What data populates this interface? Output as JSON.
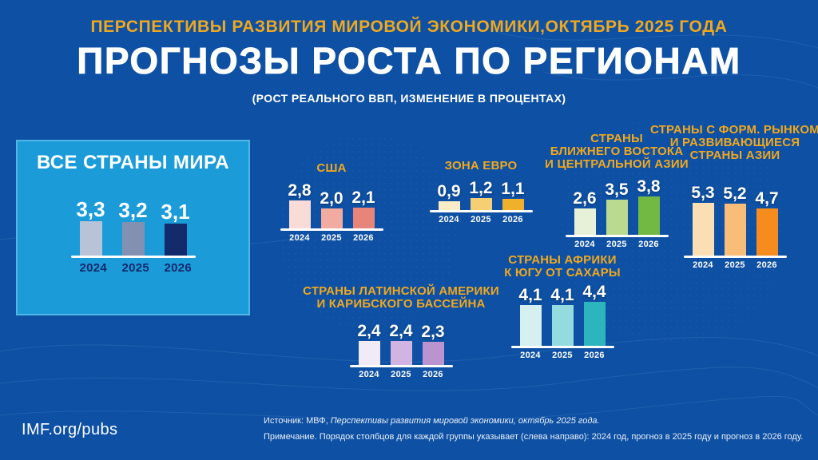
{
  "header": {
    "kicker": "ПЕРСПЕКТИВЫ РАЗВИТИЯ МИРОВОЙ ЭКОНОМИКИ,ОКТЯБРЬ 2025 ГОДА",
    "title": "ПРОГНОЗЫ РОСТА ПО РЕГИОНАМ",
    "subtitle": "(РОСТ РЕАЛЬНОГО ВВП, ИЗМЕНЕНИЕ В ПРОЦЕНТАХ)"
  },
  "footer": {
    "link": "IMF.org/pubs",
    "source_prefix": "Источник: МВФ, ",
    "source_italic": "Перспективы развития мировой экономики, октябрь 2025 года.",
    "note": "Примечание. Порядок столбцов для каждой группы указывает (слева направо): 2024 год, прогноз в 2025 году и прогноз в 2026 году."
  },
  "colors": {
    "background": "#0e50a3",
    "accent_gold": "#f0a81e",
    "world_box_blue": "#1b9cd9",
    "baseline_white": "#ffffff",
    "year_navy": "#12296b"
  },
  "chart_data": {
    "type": "bar",
    "categories": [
      "2024",
      "2025",
      "2026"
    ],
    "unit": "percent (real GDP growth, change in %)",
    "legend_note": "bar order left to right: 2024, forecast 2025, forecast 2026",
    "groups": [
      {
        "id": "world",
        "title": "ВСЕ СТРАНЫ МИРА",
        "values": [
          3.3,
          3.2,
          3.1
        ],
        "labels": [
          "3,3",
          "3,2",
          "3,1"
        ],
        "colors": [
          "#b9c3d7",
          "#8291b1",
          "#132a6b"
        ]
      },
      {
        "id": "usa",
        "title": "США",
        "values": [
          2.8,
          2.0,
          2.1
        ],
        "labels": [
          "2,8",
          "2,0",
          "2,1"
        ],
        "colors": [
          "#f9dcd7",
          "#f2aba1",
          "#e8857b"
        ]
      },
      {
        "id": "euro-area",
        "title": "ЗОНА ЕВРО",
        "values": [
          0.9,
          1.2,
          1.1
        ],
        "labels": [
          "0,9",
          "1,2",
          "1,1"
        ],
        "colors": [
          "#f9ecc6",
          "#f6cf74",
          "#f0b02b"
        ]
      },
      {
        "id": "middle-east-central-asia",
        "title": "СТРАНЫ\nБЛИЖНЕГО ВОСТОКА\nИ ЦЕНТРАЛЬНОЙ АЗИИ",
        "values": [
          2.6,
          3.5,
          3.8
        ],
        "labels": [
          "2,6",
          "3,5",
          "3,8"
        ],
        "colors": [
          "#e7f1d8",
          "#bada90",
          "#72b944"
        ]
      },
      {
        "id": "emerging-asia",
        "title": "СТРАНЫ С ФОРМ. РЫНКОМ\nИ РАЗВИВАЮЩИЕСЯ\nСТРАНЫ АЗИИ",
        "values": [
          5.3,
          5.2,
          4.7
        ],
        "labels": [
          "5,3",
          "5,2",
          "4,7"
        ],
        "colors": [
          "#fcdeb5",
          "#f9bd79",
          "#f68b1e"
        ]
      },
      {
        "id": "sub-saharan-africa",
        "title": "СТРАНЫ АФРИКИ\nК ЮГУ ОТ САХАРЫ",
        "values": [
          4.1,
          4.1,
          4.4
        ],
        "labels": [
          "4,1",
          "4,1",
          "4,4"
        ],
        "colors": [
          "#d6f0f2",
          "#94dbdf",
          "#2db5be"
        ]
      },
      {
        "id": "latin-america-caribbean",
        "title": "СТРАНЫ ЛАТИНСКОЙ АМЕРИКИ\nИ КАРИБСКОГО БАССЕЙНА",
        "values": [
          2.4,
          2.4,
          2.3
        ],
        "labels": [
          "2,4",
          "2,4",
          "2,3"
        ],
        "colors": [
          "#f1ebf8",
          "#d2b4e2",
          "#bb93cf"
        ]
      }
    ]
  }
}
